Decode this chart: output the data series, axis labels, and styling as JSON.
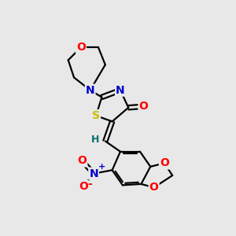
{
  "background_color": "#e8e8e8",
  "bond_color": "#000000",
  "atom_colors": {
    "O": "#ff0000",
    "N": "#0000cc",
    "S": "#ccbb00",
    "H": "#007070",
    "C": "#000000"
  },
  "font_size": 10,
  "lw": 1.6
}
